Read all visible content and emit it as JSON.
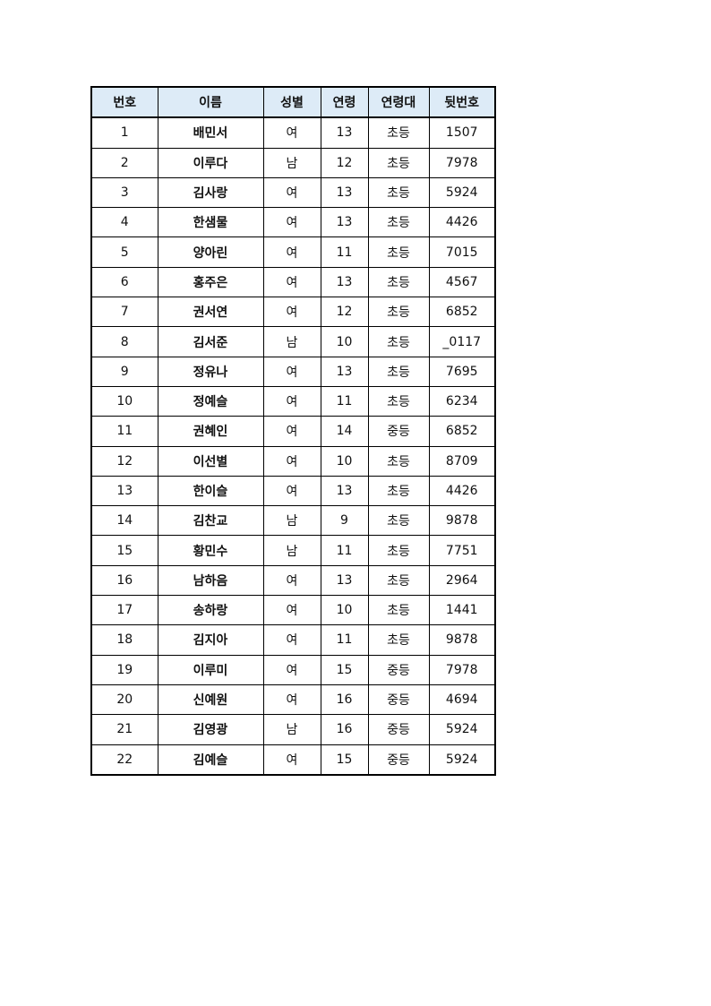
{
  "header_bg": "#ddebf7",
  "columns": [
    "번호",
    "이름",
    "성별",
    "연령",
    "연령대",
    "뒷번호"
  ],
  "rows": [
    [
      "1",
      "배민서",
      "여",
      "13",
      "초등",
      "1507"
    ],
    [
      "2",
      "이루다",
      "남",
      "12",
      "초등",
      "7978"
    ],
    [
      "3",
      "김사랑",
      "여",
      "13",
      "초등",
      "5924"
    ],
    [
      "4",
      "한샘물",
      "여",
      "13",
      "초등",
      "4426"
    ],
    [
      "5",
      "양아린",
      "여",
      "11",
      "초등",
      "7015"
    ],
    [
      "6",
      "홍주은",
      "여",
      "13",
      "초등",
      "4567"
    ],
    [
      "7",
      "권서연",
      "여",
      "12",
      "초등",
      "6852"
    ],
    [
      "8",
      "김서준",
      "남",
      "10",
      "초등",
      "_0117"
    ],
    [
      "9",
      "정유나",
      "여",
      "13",
      "초등",
      "7695"
    ],
    [
      "10",
      "정예슬",
      "여",
      "11",
      "초등",
      "6234"
    ],
    [
      "11",
      "권혜인",
      "여",
      "14",
      "중등",
      "6852"
    ],
    [
      "12",
      "이선별",
      "여",
      "10",
      "초등",
      "8709"
    ],
    [
      "13",
      "한이슬",
      "여",
      "13",
      "초등",
      "4426"
    ],
    [
      "14",
      "김찬교",
      "남",
      "9",
      "초등",
      "9878"
    ],
    [
      "15",
      "황민수",
      "남",
      "11",
      "초등",
      "7751"
    ],
    [
      "16",
      "남하음",
      "여",
      "13",
      "초등",
      "2964"
    ],
    [
      "17",
      "송하랑",
      "여",
      "10",
      "초등",
      "1441"
    ],
    [
      "18",
      "김지아",
      "여",
      "11",
      "초등",
      "9878"
    ],
    [
      "19",
      "이루미",
      "여",
      "15",
      "중등",
      "7978"
    ],
    [
      "20",
      "신예원",
      "여",
      "16",
      "중등",
      "4694"
    ],
    [
      "21",
      "김영광",
      "남",
      "16",
      "중등",
      "5924"
    ],
    [
      "22",
      "김예슬",
      "여",
      "15",
      "중등",
      "5924"
    ]
  ]
}
